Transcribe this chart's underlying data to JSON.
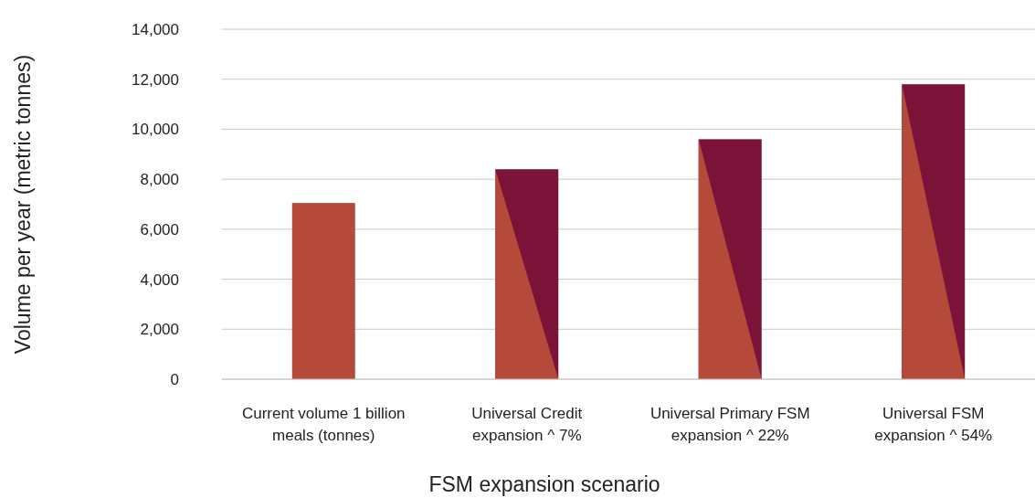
{
  "chart_data": {
    "type": "bar",
    "xlabel": "FSM expansion scenario",
    "ylabel": "Volume per year (metric tonnes)",
    "categories": [
      "Current volume 1 billion meals (tonnes)",
      "Universal Credit expansion ^ 7%",
      "Universal Primary FSM expansion ^ 22%",
      "Universal FSM expansion ^ 54%"
    ],
    "values": [
      7050,
      8400,
      9600,
      11800
    ],
    "colors": [
      "#b5493a",
      "#7b1338",
      "#7b1338",
      "#7b1338"
    ],
    "ylim": [
      0,
      14000
    ],
    "yticks": [
      {
        "value": 0,
        "label": "0"
      },
      {
        "value": 2000,
        "label": "2,000"
      },
      {
        "value": 4000,
        "label": "4,000"
      },
      {
        "value": 6000,
        "label": "6,000"
      },
      {
        "value": 8000,
        "label": "8,000"
      },
      {
        "value": 10000,
        "label": "10,000"
      },
      {
        "value": 12000,
        "label": "12,000"
      },
      {
        "value": 14000,
        "label": "14,000"
      }
    ],
    "grid": "y"
  }
}
